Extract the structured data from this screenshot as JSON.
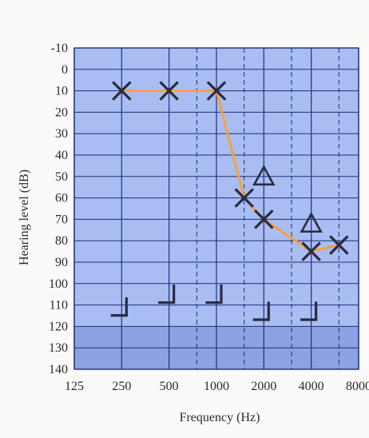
{
  "colors": {
    "plot_bg": "#a9bdf3",
    "plot_bg_dark": "#8ca2e3",
    "grid": "#1e2f78",
    "line": "#f4a23c",
    "marker": "#2a2c3e",
    "page_bg": "#fbfaf8"
  },
  "chart_data": {
    "type": "line",
    "xlabel": "Frequency (Hz)",
    "ylabel": "Hearing level (dB)",
    "x_categories": [
      "125",
      "250",
      "500",
      "1000",
      "2000",
      "4000",
      "8000"
    ],
    "y_ticks": [
      "-10",
      "0",
      "10",
      "20",
      "30",
      "40",
      "50",
      "60",
      "70",
      "80",
      "90",
      "100",
      "110",
      "120",
      "130",
      "140"
    ],
    "ylim": [
      -10,
      140
    ],
    "y_inverted": true,
    "x_scale": "log2 (octave)",
    "shaded_region": [
      120,
      140
    ],
    "grid": true,
    "series": [
      {
        "marker": "x",
        "connected": true,
        "points": [
          {
            "x": 250,
            "y": 10
          },
          {
            "x": 500,
            "y": 10
          },
          {
            "x": 1000,
            "y": 10
          },
          {
            "x": 1500,
            "y": 60
          },
          {
            "x": 2000,
            "y": 70
          },
          {
            "x": 4000,
            "y": 85
          },
          {
            "x": 6000,
            "y": 82
          }
        ]
      },
      {
        "marker": "triangle",
        "connected": false,
        "points": [
          {
            "x": 2000,
            "y": 50
          },
          {
            "x": 4000,
            "y": 72
          }
        ]
      },
      {
        "marker": "bracket",
        "connected": false,
        "points": [
          {
            "x": 250,
            "y": 113
          },
          {
            "x": 500,
            "y": 107
          },
          {
            "x": 1000,
            "y": 107
          },
          {
            "x": 2000,
            "y": 115
          },
          {
            "x": 4000,
            "y": 115
          }
        ]
      }
    ]
  }
}
